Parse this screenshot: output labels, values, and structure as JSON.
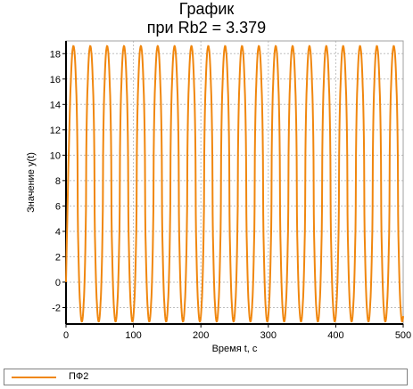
{
  "chart_data": {
    "type": "line",
    "title": "График",
    "subtitle": "при Rb2 = 3.379",
    "xlabel": "Время t, c",
    "ylabel": "Значение y(t)",
    "xlim": [
      0,
      500
    ],
    "ylim": [
      -3.3,
      19
    ],
    "xticks": [
      0,
      100,
      200,
      300,
      400,
      500
    ],
    "yticks": [
      -2,
      0,
      2,
      4,
      6,
      8,
      10,
      12,
      14,
      16,
      18
    ],
    "grid": true,
    "legend_position": "bottom",
    "series": [
      {
        "name": "ПФ2",
        "color": "#f0870f",
        "min": -3.1,
        "max": 18.6,
        "cycles": 20,
        "period": 25,
        "first_peak_x": 11,
        "start_y": 0
      }
    ]
  }
}
